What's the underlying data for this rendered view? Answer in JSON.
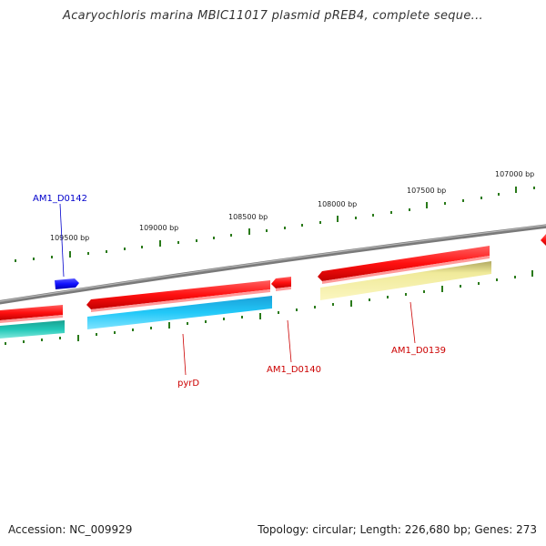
{
  "title": "Acaryochloris marina MBIC11017 plasmid pREB4, complete seque...",
  "footer": {
    "accession": "Accession: NC_009929",
    "summary": "Topology: circular; Length: 226,680 bp; Genes: 273"
  },
  "ruler": {
    "labels": [
      "107000 bp",
      "107500 bp",
      "108000 bp",
      "108500 bp",
      "109000 bp",
      "109500 bp"
    ]
  },
  "genes": [
    {
      "name": "AM1_D0142",
      "color": "#0000cc"
    },
    {
      "name": "pyrD",
      "color": "#cc0000"
    },
    {
      "name": "AM1_D0140",
      "color": "#cc0000"
    },
    {
      "name": "AM1_D0139",
      "color": "#cc0000"
    }
  ],
  "colors": {
    "backbone": "#808080",
    "cds_red": "#ff1a1a",
    "cds_blue": "#1a1aff",
    "gene_cyan": "#22bfee",
    "gene_teal": "#22c4b4",
    "gene_khaki": "#f4ee9e",
    "tick_green": "#2a7a1a"
  }
}
